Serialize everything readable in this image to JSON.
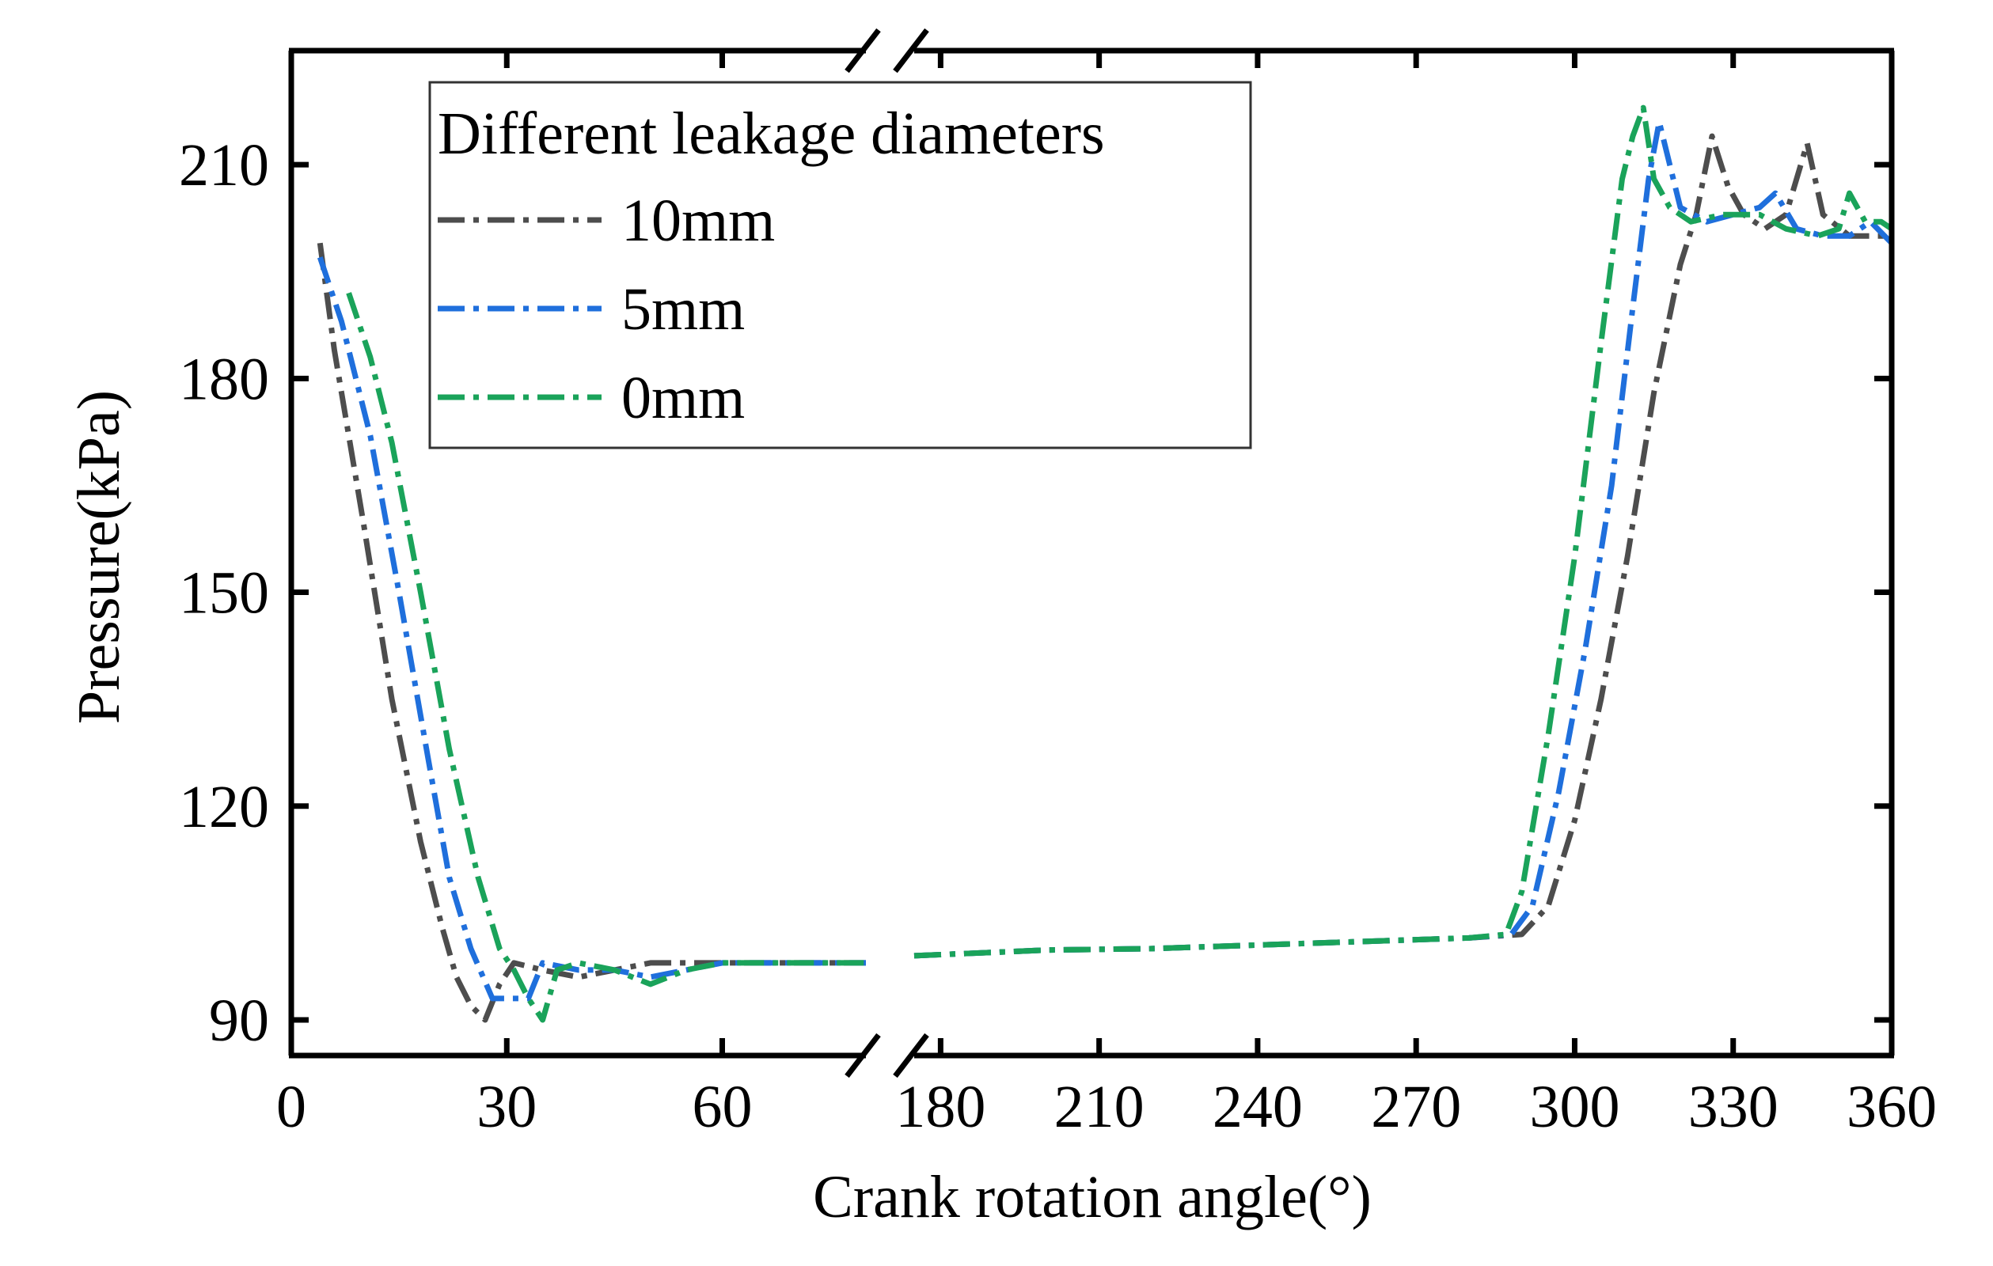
{
  "chart_data": {
    "type": "line",
    "title": "",
    "xlabel": "Crank rotation angle(°)",
    "ylabel": "Pressure(kPa)",
    "x_axis_break": {
      "from": 80,
      "to": 175
    },
    "x_segments": [
      [
        0,
        80
      ],
      [
        175,
        360
      ]
    ],
    "x_ticks": [
      {
        "value": 0,
        "label": "0"
      },
      {
        "value": 30,
        "label": "30"
      },
      {
        "value": 60,
        "label": "60"
      },
      {
        "value": 180,
        "label": "180"
      },
      {
        "value": 210,
        "label": "210"
      },
      {
        "value": 240,
        "label": "240"
      },
      {
        "value": 270,
        "label": "270"
      },
      {
        "value": 300,
        "label": "300"
      },
      {
        "value": 330,
        "label": "330"
      },
      {
        "value": 360,
        "label": "360"
      }
    ],
    "y_ticks": [
      {
        "value": 90,
        "label": "90"
      },
      {
        "value": 120,
        "label": "120"
      },
      {
        "value": 150,
        "label": "150"
      },
      {
        "value": 180,
        "label": "180"
      },
      {
        "value": 210,
        "label": "210"
      }
    ],
    "ylim": [
      85,
      226
    ],
    "legend": {
      "title": "Different leakage diameters",
      "position": "top-left"
    },
    "series": [
      {
        "name": " 10mm",
        "color": "#4d4d4d",
        "points": [
          [
            4,
            199
          ],
          [
            6,
            184
          ],
          [
            10,
            160
          ],
          [
            14,
            135
          ],
          [
            18,
            115
          ],
          [
            21,
            103
          ],
          [
            23,
            96
          ],
          [
            25,
            92
          ],
          [
            27,
            90
          ],
          [
            29,
            95
          ],
          [
            31,
            98
          ],
          [
            35,
            97
          ],
          [
            40,
            96
          ],
          [
            45,
            97
          ],
          [
            50,
            98
          ],
          [
            55,
            98
          ],
          [
            60,
            98
          ],
          [
            70,
            98
          ],
          [
            80,
            98
          ],
          [
            175,
            99
          ],
          [
            200,
            99.8
          ],
          [
            220,
            100
          ],
          [
            240,
            100.5
          ],
          [
            260,
            101
          ],
          [
            280,
            101.5
          ],
          [
            290,
            102
          ],
          [
            295,
            106
          ],
          [
            300,
            118
          ],
          [
            305,
            135
          ],
          [
            310,
            155
          ],
          [
            315,
            178
          ],
          [
            320,
            196
          ],
          [
            323,
            203
          ],
          [
            326,
            214
          ],
          [
            329,
            207
          ],
          [
            332,
            203
          ],
          [
            336,
            201
          ],
          [
            340,
            203
          ],
          [
            344,
            213
          ],
          [
            347,
            203
          ],
          [
            352,
            200
          ],
          [
            360,
            200
          ]
        ]
      },
      {
        "name": "5mm",
        "color": "#1f6fdc",
        "points": [
          [
            4,
            197
          ],
          [
            7,
            188
          ],
          [
            11,
            172
          ],
          [
            15,
            150
          ],
          [
            19,
            127
          ],
          [
            22,
            110
          ],
          [
            25,
            100
          ],
          [
            28,
            93
          ],
          [
            31,
            93
          ],
          [
            33,
            93
          ],
          [
            35,
            98
          ],
          [
            40,
            97
          ],
          [
            45,
            97
          ],
          [
            50,
            96
          ],
          [
            55,
            97
          ],
          [
            60,
            98
          ],
          [
            70,
            98
          ],
          [
            80,
            98
          ],
          [
            175,
            99
          ],
          [
            200,
            99.8
          ],
          [
            220,
            100
          ],
          [
            240,
            100.5
          ],
          [
            260,
            101
          ],
          [
            280,
            101.5
          ],
          [
            288,
            102
          ],
          [
            292,
            106
          ],
          [
            297,
            122
          ],
          [
            302,
            142
          ],
          [
            307,
            165
          ],
          [
            311,
            190
          ],
          [
            314,
            208
          ],
          [
            316,
            216
          ],
          [
            318,
            210
          ],
          [
            320,
            204
          ],
          [
            325,
            202
          ],
          [
            330,
            203
          ],
          [
            335,
            204
          ],
          [
            338,
            206
          ],
          [
            342,
            201
          ],
          [
            347,
            200
          ],
          [
            352,
            200
          ],
          [
            356,
            202
          ],
          [
            360,
            199
          ]
        ]
      },
      {
        "name": "0mm",
        "color": "#1aa35a",
        "points": [
          [
            8,
            192
          ],
          [
            11,
            183
          ],
          [
            14,
            171
          ],
          [
            18,
            150
          ],
          [
            22,
            128
          ],
          [
            26,
            110
          ],
          [
            29,
            100
          ],
          [
            31,
            97
          ],
          [
            33,
            93
          ],
          [
            35,
            90
          ],
          [
            37,
            97
          ],
          [
            40,
            98
          ],
          [
            45,
            97
          ],
          [
            50,
            95
          ],
          [
            55,
            97
          ],
          [
            60,
            98
          ],
          [
            70,
            98
          ],
          [
            80,
            98
          ],
          [
            175,
            99
          ],
          [
            200,
            99.8
          ],
          [
            220,
            100
          ],
          [
            240,
            100.5
          ],
          [
            260,
            101
          ],
          [
            280,
            101.5
          ],
          [
            287,
            102
          ],
          [
            290,
            108
          ],
          [
            295,
            130
          ],
          [
            300,
            155
          ],
          [
            305,
            185
          ],
          [
            309,
            208
          ],
          [
            311,
            214
          ],
          [
            313,
            218
          ],
          [
            315,
            208
          ],
          [
            318,
            204
          ],
          [
            322,
            202
          ],
          [
            328,
            203
          ],
          [
            335,
            203
          ],
          [
            340,
            201
          ],
          [
            346,
            200
          ],
          [
            350,
            201
          ],
          [
            352,
            206
          ],
          [
            355,
            202
          ],
          [
            358,
            202
          ],
          [
            360,
            201
          ]
        ]
      }
    ]
  }
}
